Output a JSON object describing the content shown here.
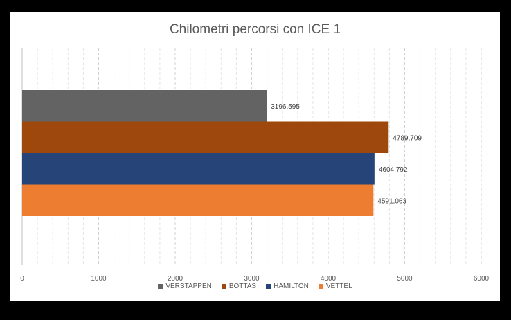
{
  "chart_data": {
    "type": "bar",
    "orientation": "horizontal",
    "title": "Chilometri percorsi con ICE 1",
    "categories": [
      ""
    ],
    "series": [
      {
        "name": "VERSTAPPEN",
        "values": [
          3196.595
        ],
        "label": "3196,595",
        "color": "#636363"
      },
      {
        "name": "BOTTAS",
        "values": [
          4789.709
        ],
        "label": "4789,709",
        "color": "#9E480E"
      },
      {
        "name": "HAMILTON",
        "values": [
          4604.792
        ],
        "label": "4604,792",
        "color": "#264478"
      },
      {
        "name": "VETTEL",
        "values": [
          4591.063
        ],
        "label": "4591,063",
        "color": "#ED7D31"
      }
    ],
    "xlim": [
      0,
      6000
    ],
    "xticks": [
      0,
      1000,
      2000,
      3000,
      4000,
      5000,
      6000
    ],
    "xlabel": "",
    "ylabel": "",
    "grid": "vertical-dashed",
    "legend_position": "bottom"
  }
}
